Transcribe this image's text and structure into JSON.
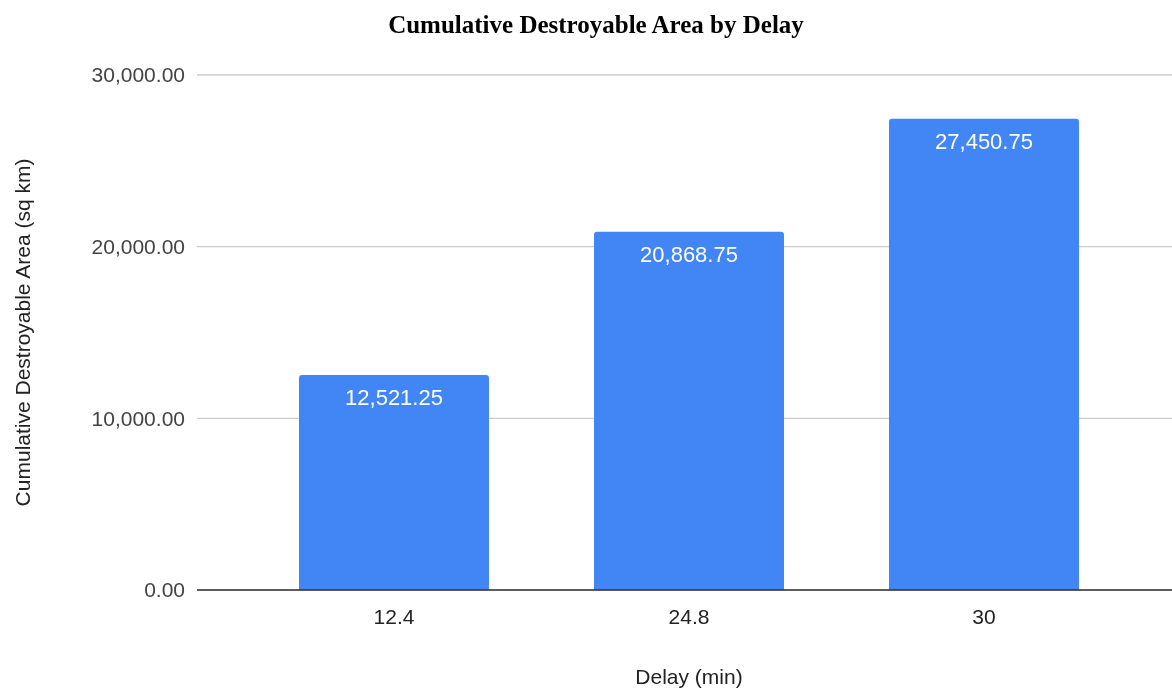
{
  "chart_data": {
    "type": "bar",
    "title": "Cumulative Destroyable Area by Delay",
    "xlabel": "Delay (min)",
    "ylabel": "Cumulative Destroyable Area (sq km)",
    "categories": [
      "12.4",
      "24.8",
      "30"
    ],
    "values": [
      12521.25,
      20868.75,
      27450.75
    ],
    "value_labels": [
      "12,521.25",
      "20,868.75",
      "27,450.75"
    ],
    "color": "#4285f4",
    "ylim": [
      0,
      30000
    ],
    "yticks": [
      {
        "value": 0,
        "label": "0.00"
      },
      {
        "value": 10000,
        "label": "10,000.00"
      },
      {
        "value": 20000,
        "label": "20,000.00"
      },
      {
        "value": 30000,
        "label": "30,000.00"
      }
    ],
    "grid": "y"
  }
}
